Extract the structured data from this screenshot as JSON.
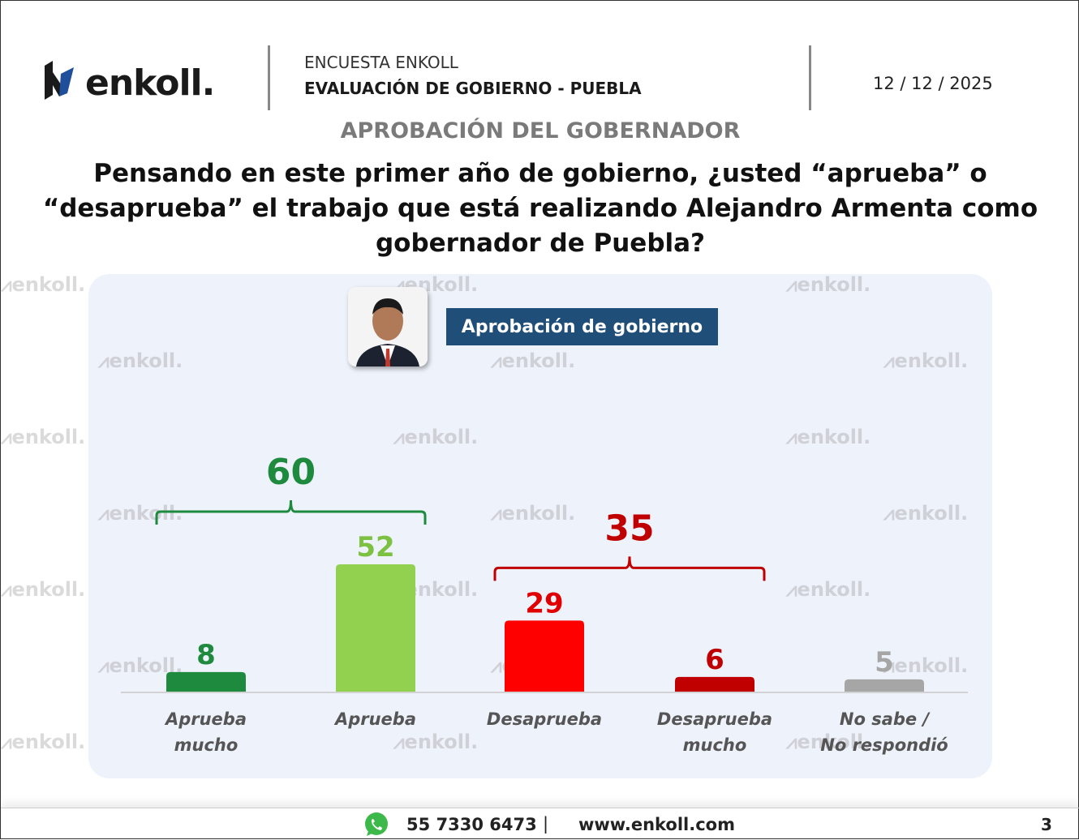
{
  "header": {
    "logo_text": "enkoll.",
    "survey": "ENCUESTA ENKOLL",
    "title": "EVALUACIÓN DE GOBIERNO - PUEBLA",
    "date": "12 / 12 / 2025"
  },
  "section_title": "APROBACIÓN DEL GOBERNADOR",
  "question": "Pensando en este primer año de gobierno, ¿usted “aprueba” o “desaprueba” el trabajo que está realizando Alejandro Armenta como gobernador de Puebla?",
  "badge": "Aprobación de gobierno",
  "watermark": "enkoll.",
  "chart_data": {
    "type": "bar",
    "categories": [
      "Aprueba mucho",
      "Aprueba",
      "Desaprueba",
      "Desaprueba mucho",
      "No sabe / No respondió"
    ],
    "values": [
      8,
      52,
      29,
      6,
      5
    ],
    "colors": [
      "#1e8a3e",
      "#92d050",
      "#ff0000",
      "#c00000",
      "#a6a6a6"
    ],
    "label_colors": [
      "#1e8a3e",
      "#7dc142",
      "#e00000",
      "#c00000",
      "#a6a6a6"
    ],
    "groups": [
      {
        "label": "60",
        "color": "#1e8a3e",
        "members": [
          0,
          1
        ]
      },
      {
        "label": "35",
        "color": "#c00000",
        "members": [
          2,
          3
        ]
      }
    ],
    "ylim": [
      0,
      60
    ],
    "grid": false,
    "legend": "none"
  },
  "footer": {
    "phone": "55 7330 6473",
    "separator": "|",
    "website": "www.enkoll.com",
    "page": "3"
  }
}
